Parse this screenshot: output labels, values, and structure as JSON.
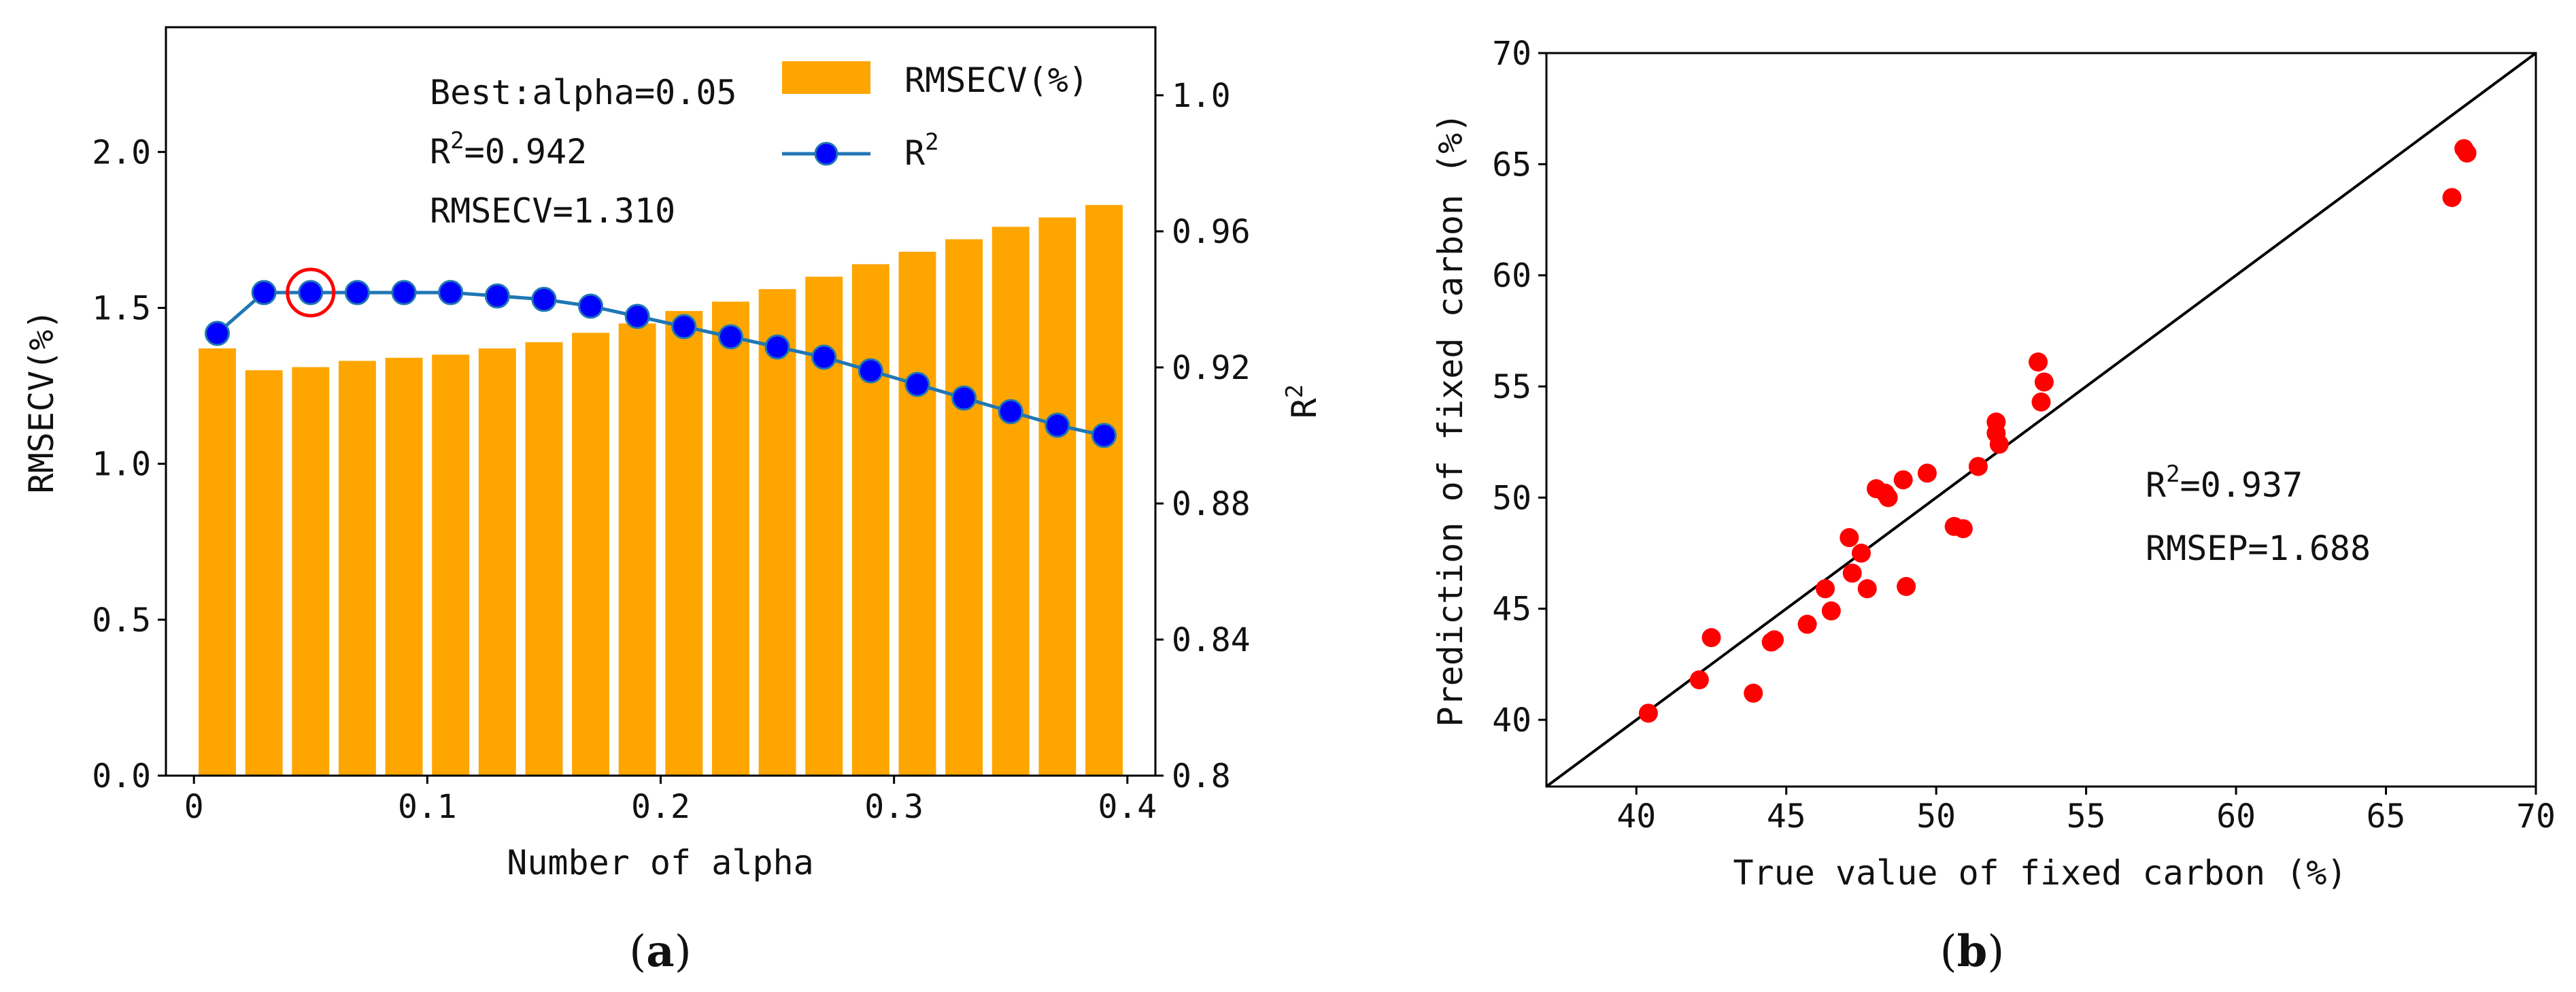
{
  "colors": {
    "bar": "#FFA500",
    "line": "#1f77b4",
    "marker": "#0000FF",
    "highlight": "#FF0000",
    "scatter": "#FF0000",
    "axis": "#000000"
  },
  "chart_data": [
    {
      "panel": "a",
      "type": "bar+line",
      "caption": "a",
      "xlabel": "Number of alpha",
      "ylabel_left": "RMSECV(%)",
      "ylabel_right_base": "R",
      "ylabel_right_sup": "2",
      "xlim": [
        -0.012,
        0.412
      ],
      "ylim_left": [
        0,
        2.4
      ],
      "ylim_right": [
        0.8,
        1.02
      ],
      "xticks": [
        0,
        0.1,
        0.2,
        0.3,
        0.4
      ],
      "xtick_labels": [
        "0",
        "0.1",
        "0.2",
        "0.3",
        "0.4"
      ],
      "yticks_left": [
        0,
        0.5,
        1.0,
        1.5,
        2.0
      ],
      "ytick_labels_left": [
        "0.0",
        "0.5",
        "1.0",
        "1.5",
        "2.0"
      ],
      "yticks_right": [
        0.8,
        0.84,
        0.88,
        0.92,
        0.96,
        1.0
      ],
      "ytick_labels_right": [
        "0.8",
        "0.84",
        "0.88",
        "0.92",
        "0.96",
        "1.0"
      ],
      "x": [
        0.01,
        0.03,
        0.05,
        0.07,
        0.09,
        0.11,
        0.13,
        0.15,
        0.17,
        0.19,
        0.21,
        0.23,
        0.25,
        0.27,
        0.29,
        0.31,
        0.33,
        0.35,
        0.37,
        0.39
      ],
      "series": [
        {
          "name": "RMSECV(%)",
          "axis": "left",
          "kind": "bar",
          "values": [
            1.37,
            1.3,
            1.31,
            1.33,
            1.34,
            1.35,
            1.37,
            1.39,
            1.42,
            1.45,
            1.49,
            1.52,
            1.56,
            1.6,
            1.64,
            1.68,
            1.72,
            1.76,
            1.79,
            1.83
          ]
        },
        {
          "name": "R2",
          "axis": "right",
          "kind": "line",
          "values": [
            0.93,
            0.942,
            0.942,
            0.942,
            0.942,
            0.942,
            0.941,
            0.94,
            0.938,
            0.935,
            0.932,
            0.929,
            0.926,
            0.923,
            0.919,
            0.915,
            0.911,
            0.907,
            0.903,
            0.9
          ]
        }
      ],
      "highlight": {
        "x": 0.05,
        "y": 0.942
      },
      "legend": [
        {
          "label": "RMSECV(%)"
        },
        {
          "label_base": "R",
          "label_sup": "2"
        }
      ],
      "annotations": {
        "best": "Best:alpha=0.05",
        "r2_base": "R",
        "r2_sup": "2",
        "r2_val": "=0.942",
        "rmsecv": "RMSECV=1.310"
      }
    },
    {
      "panel": "b",
      "type": "scatter",
      "caption": "b",
      "xlabel": "True value of fixed carbon (%)",
      "ylabel": "Prediction of fixed carbon (%)",
      "xlim": [
        37,
        70
      ],
      "ylim": [
        37,
        70
      ],
      "xticks": [
        40,
        45,
        50,
        55,
        60,
        65,
        70
      ],
      "xtick_labels": [
        "40",
        "45",
        "50",
        "55",
        "60",
        "65",
        "70"
      ],
      "yticks": [
        40,
        45,
        50,
        55,
        60,
        65,
        70
      ],
      "ytick_labels": [
        "40",
        "45",
        "50",
        "55",
        "60",
        "65",
        "70"
      ],
      "reference_line": "y = x",
      "points": [
        [
          40.4,
          40.3
        ],
        [
          42.1,
          41.8
        ],
        [
          42.5,
          43.7
        ],
        [
          43.9,
          41.2
        ],
        [
          44.5,
          43.5
        ],
        [
          44.6,
          43.6
        ],
        [
          45.7,
          44.3
        ],
        [
          46.3,
          45.9
        ],
        [
          46.5,
          44.9
        ],
        [
          47.1,
          48.2
        ],
        [
          47.2,
          46.6
        ],
        [
          47.5,
          47.5
        ],
        [
          47.7,
          45.9
        ],
        [
          48.0,
          50.4
        ],
        [
          48.3,
          50.2
        ],
        [
          48.4,
          50.0
        ],
        [
          48.9,
          50.8
        ],
        [
          49.0,
          46.0
        ],
        [
          49.7,
          51.1
        ],
        [
          50.6,
          48.7
        ],
        [
          50.9,
          48.6
        ],
        [
          51.4,
          51.4
        ],
        [
          52.0,
          53.4
        ],
        [
          52.0,
          52.9
        ],
        [
          52.1,
          52.4
        ],
        [
          53.4,
          56.1
        ],
        [
          53.5,
          54.3
        ],
        [
          53.6,
          55.2
        ],
        [
          67.2,
          63.5
        ],
        [
          67.6,
          65.7
        ],
        [
          67.7,
          65.5
        ]
      ],
      "annotations": {
        "r2_base": "R",
        "r2_sup": "2",
        "r2_val": "=0.937",
        "rmsep": "RMSEP=1.688"
      }
    }
  ]
}
